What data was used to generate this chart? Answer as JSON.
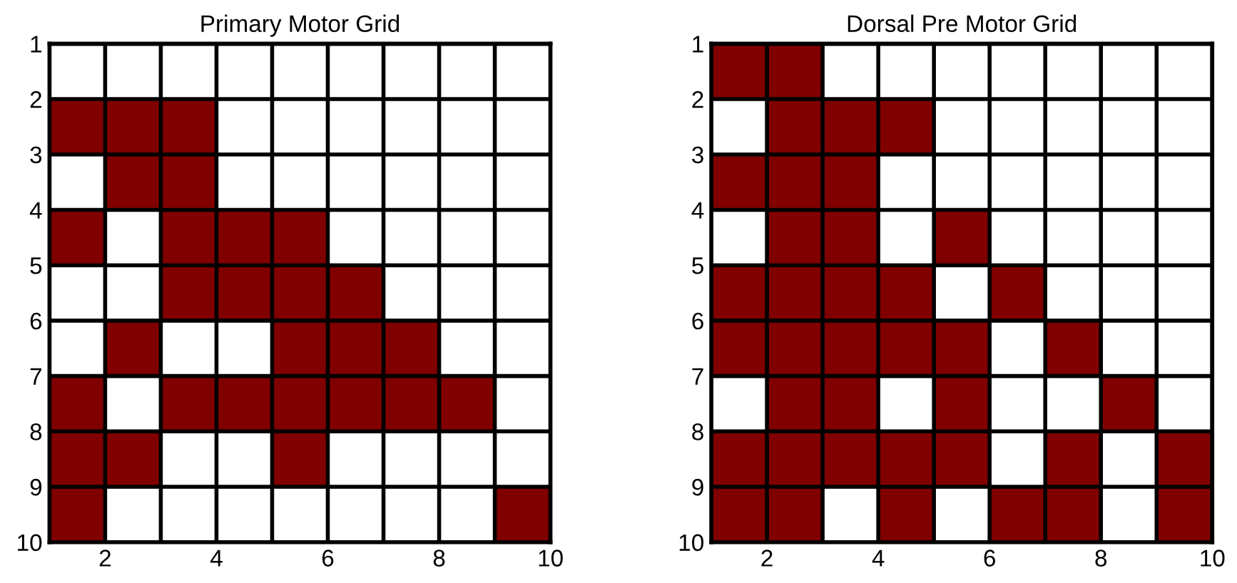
{
  "chart_data": [
    {
      "type": "scatter",
      "title": "Primary Motor Grid",
      "marker": "square",
      "grid": true,
      "xlim": [
        1,
        10
      ],
      "ylim": [
        10,
        1
      ],
      "xticks": [
        {
          "value": 1,
          "label": null
        },
        2,
        {
          "value": 3,
          "label": null
        },
        4,
        {
          "value": 5,
          "label": null
        },
        6,
        {
          "value": 7,
          "label": null
        },
        8,
        {
          "value": 9,
          "label": null
        },
        10
      ],
      "yticks": [
        1,
        2,
        3,
        4,
        5,
        6,
        7,
        8,
        9,
        10
      ],
      "series": [
        {
          "color": "#800000",
          "x": [
            1.5,
            2.5,
            3.5,
            2.5,
            3.5,
            1.5,
            3.5,
            4.5,
            5.5,
            3.5,
            4.5,
            5.5,
            6.5,
            2.5,
            5.5,
            6.5,
            7.5,
            1.5,
            3.5,
            4.5,
            5.5,
            6.5,
            7.5,
            8.5,
            1.5,
            2.5,
            5.5,
            1.5,
            9.5
          ],
          "values": [
            2.5,
            2.5,
            2.5,
            3.5,
            3.5,
            4.5,
            4.5,
            4.5,
            4.5,
            5.5,
            5.5,
            5.5,
            5.5,
            6.5,
            6.5,
            6.5,
            6.5,
            7.5,
            7.5,
            7.5,
            7.5,
            7.5,
            7.5,
            7.5,
            8.5,
            8.5,
            8.5,
            9.5,
            9.5
          ]
        }
      ]
    },
    {
      "type": "scatter",
      "title": "Dorsal Pre Motor Grid",
      "marker": "square",
      "grid": true,
      "xlim": [
        1,
        10
      ],
      "ylim": [
        10,
        1
      ],
      "xticks": [
        {
          "value": 1,
          "label": null
        },
        2,
        {
          "value": 3,
          "label": null
        },
        4,
        {
          "value": 5,
          "label": null
        },
        6,
        {
          "value": 7,
          "label": null
        },
        8,
        {
          "value": 9,
          "label": null
        },
        10
      ],
      "yticks": [
        1,
        2,
        3,
        4,
        5,
        6,
        7,
        8,
        9,
        10
      ],
      "series": [
        {
          "color": "#800000",
          "x": [
            1.5,
            2.5,
            2.5,
            3.5,
            4.5,
            1.5,
            2.5,
            3.5,
            2.5,
            3.5,
            5.5,
            1.5,
            2.5,
            3.5,
            4.5,
            6.5,
            1.5,
            2.5,
            3.5,
            4.5,
            5.5,
            7.5,
            2.5,
            3.5,
            5.5,
            8.5,
            1.5,
            2.5,
            3.5,
            4.5,
            5.5,
            7.5,
            9.5,
            1.5,
            2.5,
            4.5,
            6.5,
            7.5,
            9.5
          ],
          "values": [
            1.5,
            1.5,
            2.5,
            2.5,
            2.5,
            3.5,
            3.5,
            3.5,
            4.5,
            4.5,
            4.5,
            5.5,
            5.5,
            5.5,
            5.5,
            5.5,
            6.5,
            6.5,
            6.5,
            6.5,
            6.5,
            6.5,
            7.5,
            7.5,
            7.5,
            7.5,
            8.5,
            8.5,
            8.5,
            8.5,
            8.5,
            8.5,
            8.5,
            9.5,
            9.5,
            9.5,
            9.5,
            9.5,
            9.5
          ]
        }
      ]
    }
  ]
}
